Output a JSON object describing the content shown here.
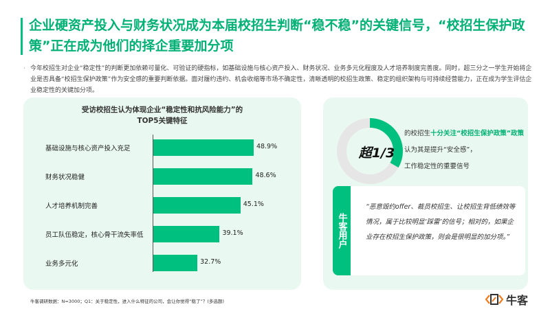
{
  "title": "企业硬资产投入与财务状况成为本届校招生判断“稳不稳”的关键信号，“校招生保护政策”正在成为他们的择企重要加分项",
  "intro": "今年校招生对企业“稳定性”的判断更加依赖可量化、可验证的硬指标，如基础设施与核心资产投入、财务状况、业务多元化程度及人才培养制度完善度。同时，超三分之一学生开始将企业是否具备“校招生保护政策”作为安全感的重要判断依据。面对履约违约、机会收缩等市场不确定性，清晰透明的校招生政策、稳定的组织架构与可持续经营能力，正在成为学生评估企业稳定性的关键加分项。",
  "chart_data": {
    "type": "bar",
    "title": "受访校招生认为体现企业“稳定性和抗风险能力”的",
    "subtitle": "TOP5关键特征",
    "categories": [
      "基础设施与核心资产投入充足",
      "财务状况稳健",
      "人才培养机制完善",
      "员工队伍稳定，核心骨干流失率低",
      "业务多元化"
    ],
    "values": [
      48.9,
      48.6,
      45.1,
      39.1,
      32.7
    ],
    "labels": [
      "48.9%",
      "48.6%",
      "45.1%",
      "39.1%",
      "32.7%"
    ],
    "unit": "%",
    "color": "#00c07f"
  },
  "stat": {
    "big": "超1/3",
    "fraction": 0.333,
    "line1a": "的校招生",
    "line1b": "十分关注“校招生保护政策”政策",
    "line2": "认为其是提升“安全感”，",
    "line3": "工作稳定性的重要信号"
  },
  "quote": {
    "tag": "牛客用户",
    "text": "“恶意毁约offer、裁员校招生、让校招生背低绩效等情况，属于比较明显‘踩雷’的信号；相对的，如果企业存在校招生保护政策，则会是很明显的加分项。”"
  },
  "footnote": "牛客调研数据：N=3000；Q1：关于稳定性，进入什么特征的公司，会让你觉得“稳了”？(多选题)",
  "logo": "牛客",
  "colors": {
    "accent": "#00c07f",
    "panel": "#eaf8f2",
    "logo": "#f07b1d"
  }
}
